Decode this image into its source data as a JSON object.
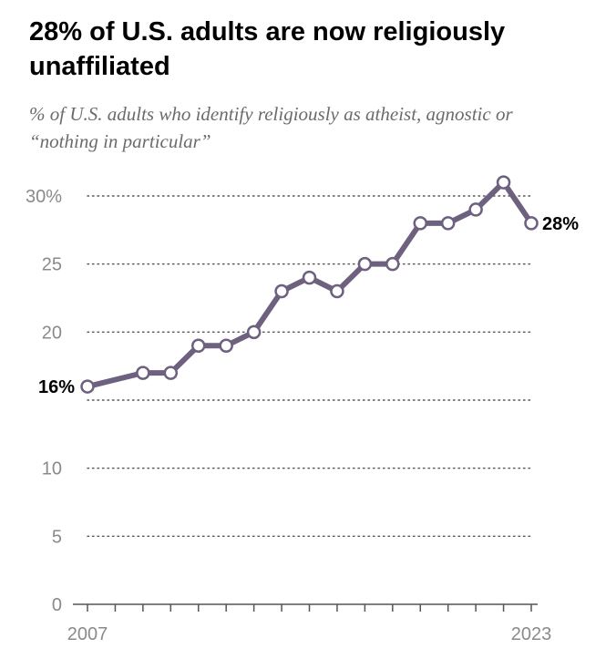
{
  "title": "28% of U.S. adults are now religiously unaffiliated",
  "subtitle": "% of U.S. adults who identify religiously as atheist, agnostic or “nothing in particular”",
  "colors": {
    "line": "#6e607f",
    "marker_fill": "#ffffff",
    "grid": "#555555",
    "axis": "#555555"
  },
  "chart_data": {
    "type": "line",
    "title": "28% of U.S. adults are now religiously unaffiliated",
    "subtitle": "% of U.S. adults who identify religiously as atheist, agnostic or “nothing in particular”",
    "xlabel": "",
    "ylabel": "",
    "xlim": [
      2007,
      2023
    ],
    "ylim": [
      0,
      30
    ],
    "yticks": [
      0,
      5,
      10,
      15,
      20,
      25,
      30
    ],
    "ytick_labels": [
      "0",
      "5",
      "10",
      "",
      "20",
      "25",
      "30%"
    ],
    "xtick_labels_shown": [
      "2007",
      "2023"
    ],
    "grid": "horizontal dotted",
    "series": [
      {
        "points": [
          {
            "x": 2007,
            "y": 16
          },
          {
            "x": 2009,
            "y": 17
          },
          {
            "x": 2010,
            "y": 17
          },
          {
            "x": 2011,
            "y": 19
          },
          {
            "x": 2012,
            "y": 19
          },
          {
            "x": 2013,
            "y": 20
          },
          {
            "x": 2014,
            "y": 23
          },
          {
            "x": 2015,
            "y": 24
          },
          {
            "x": 2016,
            "y": 23
          },
          {
            "x": 2017,
            "y": 25
          },
          {
            "x": 2018,
            "y": 25
          },
          {
            "x": 2019,
            "y": 28
          },
          {
            "x": 2020,
            "y": 28
          },
          {
            "x": 2021,
            "y": 29
          },
          {
            "x": 2022,
            "y": 31
          },
          {
            "x": 2023,
            "y": 28
          }
        ]
      }
    ],
    "data_labels": [
      {
        "x": 2007,
        "y": 16,
        "text": "16%",
        "side": "left"
      },
      {
        "x": 2023,
        "y": 28,
        "text": "28%",
        "side": "right"
      }
    ]
  }
}
